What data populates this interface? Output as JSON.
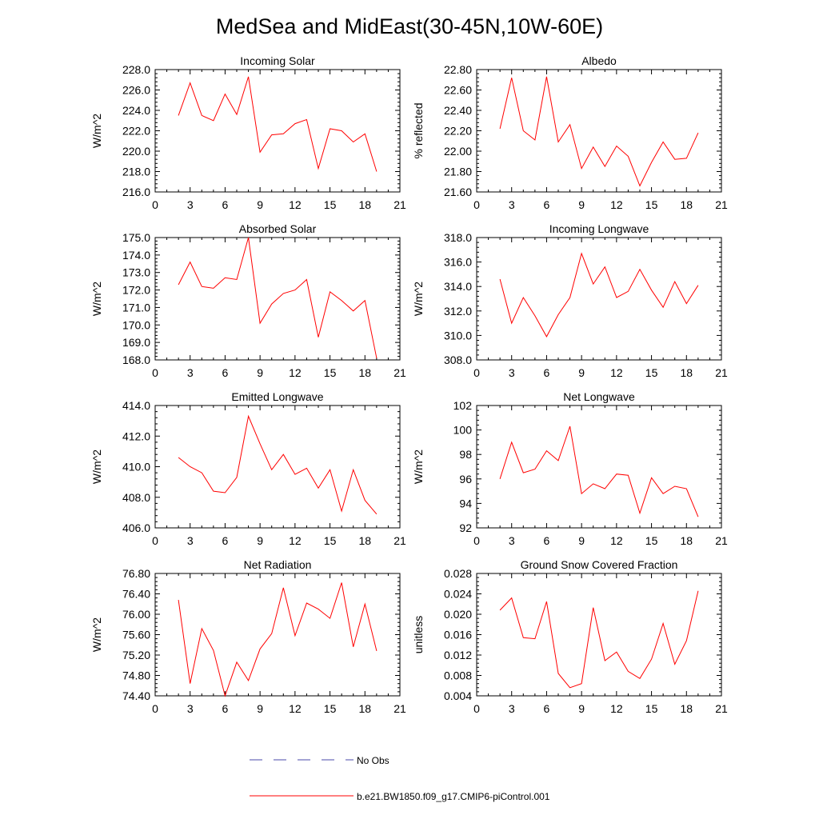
{
  "title": "MedSea and MidEast(30-45N,10W-60E)",
  "colors": {
    "model": "#ff0000",
    "obs": "#4a4aaa",
    "axis": "#000000"
  },
  "legend": {
    "obs_label": "No Obs",
    "model_label": "b.e21.BW1850.f09_g17.CMIP6-piControl.001"
  },
  "chart_data": [
    {
      "type": "line",
      "title": "Incoming Solar",
      "ylabel": "W/m^2",
      "xlim": [
        0,
        21
      ],
      "xticks": [
        0,
        3,
        6,
        9,
        12,
        15,
        18,
        21
      ],
      "ylim": [
        216,
        228
      ],
      "yticks": [
        "216.0",
        "218.0",
        "220.0",
        "222.0",
        "224.0",
        "226.0",
        "228.0"
      ],
      "x": [
        2,
        3,
        4,
        5,
        6,
        7,
        8,
        9,
        10,
        11,
        12,
        13,
        14,
        15,
        16,
        17,
        18,
        19
      ],
      "values": [
        223.5,
        226.7,
        223.5,
        223.0,
        225.6,
        223.6,
        227.3,
        219.9,
        221.6,
        221.7,
        222.7,
        223.1,
        218.3,
        222.2,
        222.0,
        220.9,
        221.7,
        218.0
      ]
    },
    {
      "type": "line",
      "title": "Albedo",
      "ylabel": "% reflected",
      "xlim": [
        0,
        21
      ],
      "xticks": [
        0,
        3,
        6,
        9,
        12,
        15,
        18,
        21
      ],
      "ylim": [
        21.6,
        22.8
      ],
      "yticks": [
        "21.60",
        "21.80",
        "22.00",
        "22.20",
        "22.40",
        "22.60",
        "22.80"
      ],
      "x": [
        2,
        3,
        4,
        5,
        6,
        7,
        8,
        9,
        10,
        11,
        12,
        13,
        14,
        15,
        16,
        17,
        18,
        19
      ],
      "values": [
        22.22,
        22.72,
        22.2,
        22.11,
        22.73,
        22.09,
        22.26,
        21.83,
        22.04,
        21.85,
        22.05,
        21.95,
        21.66,
        21.89,
        22.09,
        21.92,
        21.93,
        22.18
      ]
    },
    {
      "type": "line",
      "title": "Absorbed Solar",
      "ylabel": "W/m^2",
      "xlim": [
        0,
        21
      ],
      "xticks": [
        0,
        3,
        6,
        9,
        12,
        15,
        18,
        21
      ],
      "ylim": [
        168,
        175
      ],
      "yticks": [
        "168.0",
        "169.0",
        "170.0",
        "171.0",
        "172.0",
        "173.0",
        "174.0",
        "175.0"
      ],
      "x": [
        2,
        3,
        4,
        5,
        6,
        7,
        8,
        9,
        10,
        11,
        12,
        13,
        14,
        15,
        16,
        17,
        18,
        19
      ],
      "values": [
        172.3,
        173.6,
        172.2,
        172.1,
        172.7,
        172.6,
        175.0,
        170.1,
        171.2,
        171.8,
        172.0,
        172.6,
        169.3,
        171.9,
        171.4,
        170.8,
        171.4,
        168.1
      ]
    },
    {
      "type": "line",
      "title": "Incoming Longwave",
      "ylabel": "W/m^2",
      "xlim": [
        0,
        21
      ],
      "xticks": [
        0,
        3,
        6,
        9,
        12,
        15,
        18,
        21
      ],
      "ylim": [
        308,
        318
      ],
      "yticks": [
        "308.0",
        "310.0",
        "312.0",
        "314.0",
        "316.0",
        "318.0"
      ],
      "x": [
        2,
        3,
        4,
        5,
        6,
        7,
        8,
        9,
        10,
        11,
        12,
        13,
        14,
        15,
        16,
        17,
        18,
        19
      ],
      "values": [
        314.6,
        311.0,
        313.1,
        311.6,
        309.9,
        311.7,
        313.1,
        316.7,
        314.2,
        315.6,
        313.1,
        313.6,
        315.4,
        313.7,
        312.3,
        314.4,
        312.6,
        314.1
      ]
    },
    {
      "type": "line",
      "title": "Emitted Longwave",
      "ylabel": "W/m^2",
      "xlim": [
        0,
        21
      ],
      "xticks": [
        0,
        3,
        6,
        9,
        12,
        15,
        18,
        21
      ],
      "ylim": [
        406,
        414
      ],
      "yticks": [
        "406.0",
        "408.0",
        "410.0",
        "412.0",
        "414.0"
      ],
      "x": [
        2,
        3,
        4,
        5,
        6,
        7,
        8,
        9,
        10,
        11,
        12,
        13,
        14,
        15,
        16,
        17,
        18,
        19
      ],
      "values": [
        410.6,
        410.0,
        409.6,
        408.4,
        408.3,
        409.3,
        413.3,
        411.5,
        409.8,
        410.8,
        409.5,
        409.9,
        408.6,
        409.8,
        407.1,
        409.8,
        407.8,
        406.9
      ]
    },
    {
      "type": "line",
      "title": "Net Longwave",
      "ylabel": "W/m^2",
      "xlim": [
        0,
        21
      ],
      "xticks": [
        0,
        3,
        6,
        9,
        12,
        15,
        18,
        21
      ],
      "ylim": [
        92,
        102
      ],
      "yticks": [
        "92",
        "94",
        "96",
        "98",
        "100",
        "102"
      ],
      "x": [
        2,
        3,
        4,
        5,
        6,
        7,
        8,
        9,
        10,
        11,
        12,
        13,
        14,
        15,
        16,
        17,
        18,
        19
      ],
      "values": [
        96.0,
        99.0,
        96.5,
        96.8,
        98.3,
        97.5,
        100.3,
        94.8,
        95.6,
        95.2,
        96.4,
        96.3,
        93.2,
        96.1,
        94.8,
        95.4,
        95.2,
        92.9
      ]
    },
    {
      "type": "line",
      "title": "Net Radiation",
      "ylabel": "W/m^2",
      "xlim": [
        0,
        21
      ],
      "xticks": [
        0,
        3,
        6,
        9,
        12,
        15,
        18,
        21
      ],
      "ylim": [
        74.4,
        76.8
      ],
      "yticks": [
        "74.40",
        "74.80",
        "75.20",
        "75.60",
        "76.00",
        "76.40",
        "76.80"
      ],
      "x": [
        2,
        3,
        4,
        5,
        6,
        7,
        8,
        9,
        10,
        11,
        12,
        13,
        14,
        15,
        16,
        17,
        18,
        19
      ],
      "values": [
        76.28,
        74.64,
        75.72,
        75.29,
        74.4,
        75.06,
        74.7,
        75.32,
        75.62,
        76.52,
        75.58,
        76.22,
        76.1,
        75.92,
        76.62,
        75.36,
        76.2,
        75.28
      ]
    },
    {
      "type": "line",
      "title": "Ground Snow Covered Fraction",
      "ylabel": "unitless",
      "xlim": [
        0,
        21
      ],
      "xticks": [
        0,
        3,
        6,
        9,
        12,
        15,
        18,
        21
      ],
      "ylim": [
        0.004,
        0.028
      ],
      "yticks": [
        "0.004",
        "0.008",
        "0.012",
        "0.016",
        "0.020",
        "0.024",
        "0.028"
      ],
      "x": [
        2,
        3,
        4,
        5,
        6,
        7,
        8,
        9,
        10,
        11,
        12,
        13,
        14,
        15,
        16,
        17,
        18,
        19
      ],
      "values": [
        0.0208,
        0.0232,
        0.0154,
        0.0152,
        0.0225,
        0.0084,
        0.0056,
        0.0064,
        0.0213,
        0.0109,
        0.0126,
        0.0088,
        0.0074,
        0.0112,
        0.0182,
        0.0102,
        0.0148,
        0.0246
      ]
    }
  ]
}
